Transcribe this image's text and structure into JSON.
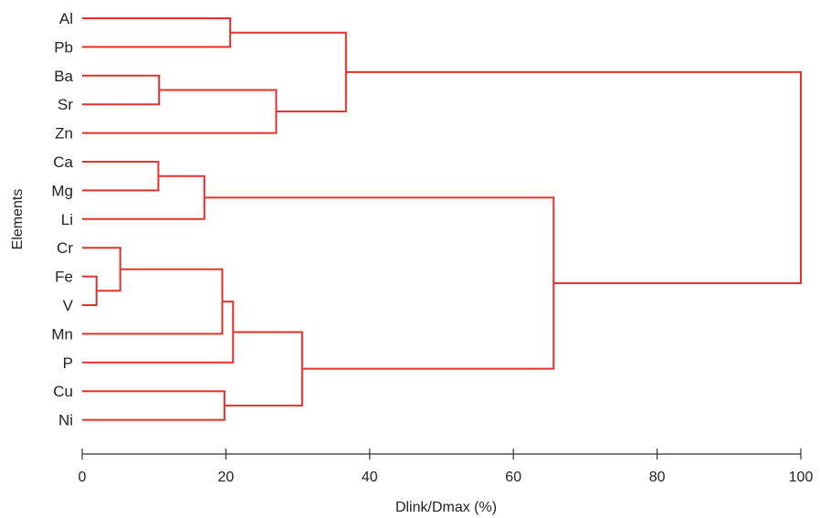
{
  "chart_data": {
    "type": "dendrogram",
    "xlabel": "Dlink/Dmax (%)",
    "ylabel": "Elements",
    "xlim": [
      0,
      100
    ],
    "xticks": [
      0,
      20,
      40,
      60,
      80,
      100
    ],
    "line_color": "#e8302a",
    "leaves": [
      "Al",
      "Pb",
      "Ba",
      "Sr",
      "Zn",
      "Ca",
      "Mg",
      "Li",
      "Cr",
      "Fe",
      "V",
      "Mn",
      "P",
      "Cu",
      "Ni"
    ],
    "merges": [
      {
        "id": "n1",
        "left": "Fe",
        "right": "V",
        "height": 2
      },
      {
        "id": "n2",
        "left": "Cr",
        "right": "n1",
        "height": 5.3
      },
      {
        "id": "n3",
        "left": "Ba",
        "right": "Sr",
        "height": 10.7
      },
      {
        "id": "n4",
        "left": "Ca",
        "right": "Mg",
        "height": 10.6
      },
      {
        "id": "n5",
        "left": "n4",
        "right": "Li",
        "height": 17
      },
      {
        "id": "n6",
        "left": "n2",
        "right": "Mn",
        "height": 19.5
      },
      {
        "id": "n7",
        "left": "Cu",
        "right": "Ni",
        "height": 19.8
      },
      {
        "id": "n8",
        "left": "Al",
        "right": "Pb",
        "height": 20.6
      },
      {
        "id": "n9",
        "left": "n6",
        "right": "P",
        "height": 21
      },
      {
        "id": "n10",
        "left": "n3",
        "right": "Zn",
        "height": 27
      },
      {
        "id": "n11",
        "left": "n9",
        "right": "n7",
        "height": 30.6
      },
      {
        "id": "n12",
        "left": "n8",
        "right": "n10",
        "height": 36.7
      },
      {
        "id": "n13",
        "left": "n5",
        "right": "n11",
        "height": 65.6
      },
      {
        "id": "n14",
        "left": "n12",
        "right": "n13",
        "height": 100
      }
    ]
  }
}
